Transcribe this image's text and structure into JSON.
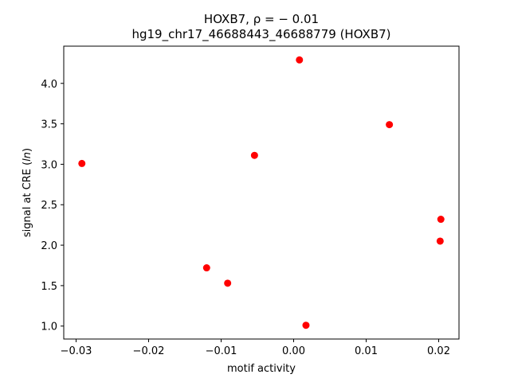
{
  "chart_data": {
    "type": "scatter",
    "title_line1": "HOXB7, ρ = − 0.01",
    "title_line2": "hg19_chr17_46688443_46688779 (HOXB7)",
    "xlabel": "motif activity",
    "ylabel_prefix": "signal at CRE (",
    "ylabel_italic": "ln",
    "ylabel_suffix": ")",
    "xlim": [
      -0.0317,
      0.0228
    ],
    "ylim": [
      0.84,
      4.46
    ],
    "xticks": [
      -0.03,
      -0.02,
      -0.01,
      0.0,
      0.01,
      0.02
    ],
    "xtick_labels": [
      "−0.03",
      "−0.02",
      "−0.01",
      "0.00",
      "0.01",
      "0.02"
    ],
    "yticks": [
      1.0,
      1.5,
      2.0,
      2.5,
      3.0,
      3.5,
      4.0
    ],
    "ytick_labels": [
      "1.0",
      "1.5",
      "2.0",
      "2.5",
      "3.0",
      "3.5",
      "4.0"
    ],
    "point_color": "#ff0000",
    "grid": false,
    "points": [
      {
        "x": -0.0292,
        "y": 3.01
      },
      {
        "x": -0.012,
        "y": 1.72
      },
      {
        "x": -0.0091,
        "y": 1.53
      },
      {
        "x": -0.0054,
        "y": 3.11
      },
      {
        "x": 0.0008,
        "y": 4.29
      },
      {
        "x": 0.0017,
        "y": 1.01
      },
      {
        "x": 0.0132,
        "y": 3.49
      },
      {
        "x": 0.0202,
        "y": 2.05
      },
      {
        "x": 0.0203,
        "y": 2.32
      }
    ]
  }
}
